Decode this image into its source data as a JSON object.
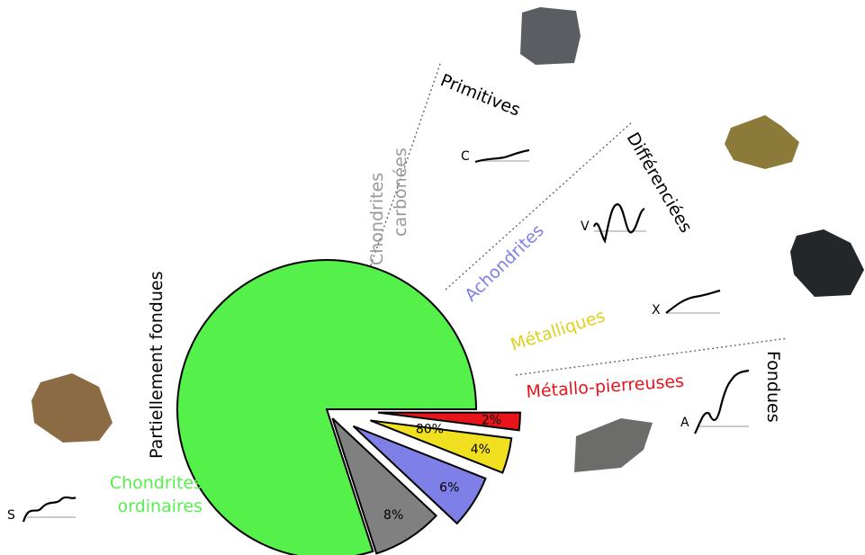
{
  "chart_data": {
    "type": "pie",
    "categories": [
      "Chondrites ordinaires",
      "Chondrites carbonées",
      "Achondrites",
      "Métalliques",
      "Métallo-pierreuses"
    ],
    "values": [
      80,
      8,
      6,
      4,
      2
    ],
    "value_labels": [
      "80%",
      "8%",
      "6%",
      "4%",
      "2%"
    ],
    "colors": [
      "#55f04a",
      "#808080",
      "#7f7fe8",
      "#f0e020",
      "#e8141c"
    ],
    "annotations": [
      "Primitives",
      "Différenciées",
      "Fondues",
      "Partiellement fondues"
    ],
    "spectral_types": [
      "S",
      "C",
      "V",
      "X",
      "A"
    ]
  }
}
